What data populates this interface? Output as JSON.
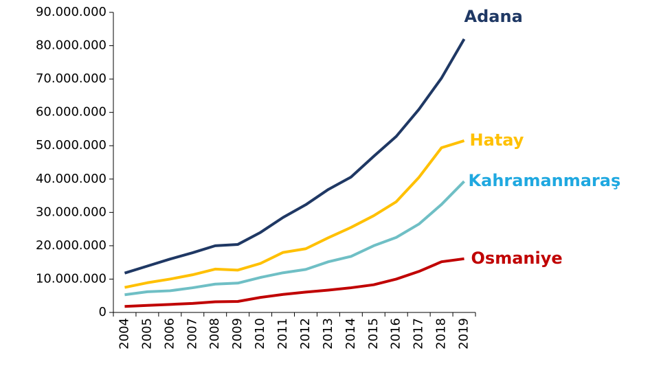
{
  "chart_data": {
    "type": "line",
    "categories": [
      "2004",
      "2005",
      "2006",
      "2007",
      "2008",
      "2009",
      "2010",
      "2011",
      "2012",
      "2013",
      "2014",
      "2015",
      "2016",
      "2017",
      "2018",
      "2019"
    ],
    "series": [
      {
        "name": "Adana",
        "color": "#1f3864",
        "label_color": "#1f3864",
        "values": [
          11800000,
          13900000,
          16000000,
          17900000,
          20000000,
          20400000,
          24000000,
          28500000,
          32300000,
          36900000,
          40600000,
          46800000,
          52800000,
          60900000,
          70300000,
          82000000
        ]
      },
      {
        "name": "Hatay",
        "color": "#ffc000",
        "label_color": "#ffc000",
        "values": [
          7500000,
          8900000,
          10000000,
          11300000,
          13000000,
          12700000,
          14700000,
          18000000,
          19100000,
          22400000,
          25500000,
          29000000,
          33200000,
          40500000,
          49400000,
          51500000
        ]
      },
      {
        "name": "Kahramanmaraş",
        "color": "#6fbfc5",
        "label_color": "#1fa8e0",
        "values": [
          5300000,
          6200000,
          6500000,
          7400000,
          8500000,
          8800000,
          10500000,
          11900000,
          12900000,
          15200000,
          16800000,
          20000000,
          22500000,
          26500000,
          32400000,
          39300000
        ]
      },
      {
        "name": "Osmaniye",
        "color": "#c00000",
        "label_color": "#c00000",
        "values": [
          1800000,
          2100000,
          2400000,
          2700000,
          3200000,
          3300000,
          4500000,
          5400000,
          6100000,
          6700000,
          7400000,
          8300000,
          10000000,
          12300000,
          15200000,
          16100000
        ]
      }
    ],
    "ylim": [
      0,
      90000000
    ],
    "yticks": [
      0,
      {
        "value": 10000000,
        "label": "10.000.000"
      },
      {
        "value": 20000000,
        "label": "20.000.000"
      },
      {
        "value": 30000000,
        "label": "30.000.000"
      },
      {
        "value": 40000000,
        "label": "40.000.000"
      },
      {
        "value": 50000000,
        "label": "50.000.000"
      },
      {
        "value": 60000000,
        "label": "60.000.000"
      },
      {
        "value": 70000000,
        "label": "70.000.000"
      },
      {
        "value": 80000000,
        "label": "80.000.000"
      },
      {
        "value": 90000000,
        "label": "90.000.000"
      }
    ],
    "grid": false
  }
}
